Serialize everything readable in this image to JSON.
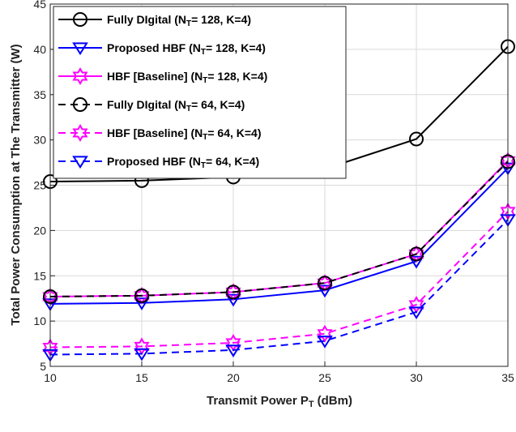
{
  "chart_data": {
    "type": "line",
    "x": [
      10,
      15,
      20,
      25,
      30,
      35
    ],
    "xlabel": "Transmit Power P",
    "xlabel_sub": "T",
    "xlabel_unit": "(dBm)",
    "ylabel": "Total Power Consumption at The Transmitter (W)",
    "xlim": [
      10,
      35
    ],
    "ylim": [
      5,
      45
    ],
    "xticks": [
      10,
      15,
      20,
      25,
      30,
      35
    ],
    "yticks": [
      5,
      10,
      15,
      20,
      25,
      30,
      35,
      40,
      45
    ],
    "grid": true,
    "legend_position": "top-left",
    "series": [
      {
        "name": "Fully DIgital (N",
        "sub": "T",
        "suffix": "= 128, K=4)",
        "color": "#000000",
        "dash": "solid",
        "marker": "circle",
        "values": [
          25.4,
          25.5,
          25.9,
          26.8,
          30.1,
          40.3
        ]
      },
      {
        "name": "Proposed HBF  (N",
        "sub": "T",
        "suffix": "= 128, K=4)",
        "color": "#0000ff",
        "dash": "solid",
        "marker": "triangle-down",
        "values": [
          11.9,
          12.0,
          12.4,
          13.4,
          16.6,
          26.9
        ]
      },
      {
        "name": "HBF  [Baseline] (N",
        "sub": "T",
        "suffix": "= 128, K=4)",
        "color": "#ff00ff",
        "dash": "solid",
        "marker": "hexagram",
        "values": [
          12.7,
          12.8,
          13.2,
          14.2,
          17.4,
          27.7
        ]
      },
      {
        "name": "Fully DIgital (N",
        "sub": "T",
        "suffix": "= 64, K=4)",
        "color": "#000000",
        "dash": "dashed",
        "marker": "circle",
        "values": [
          12.7,
          12.8,
          13.2,
          14.2,
          17.4,
          27.6
        ]
      },
      {
        "name": "HBF  [Baseline] (N",
        "sub": "T",
        "suffix": "= 64, K=4)",
        "color": "#ff00ff",
        "dash": "dashed",
        "marker": "hexagram",
        "values": [
          7.1,
          7.2,
          7.6,
          8.6,
          11.8,
          22.1
        ]
      },
      {
        "name": "Proposed HBF  (N",
        "sub": "T",
        "suffix": "= 64, K=4)",
        "color": "#0000ff",
        "dash": "dashed",
        "marker": "triangle-down",
        "values": [
          6.3,
          6.4,
          6.8,
          7.8,
          11.0,
          21.2
        ]
      }
    ]
  }
}
